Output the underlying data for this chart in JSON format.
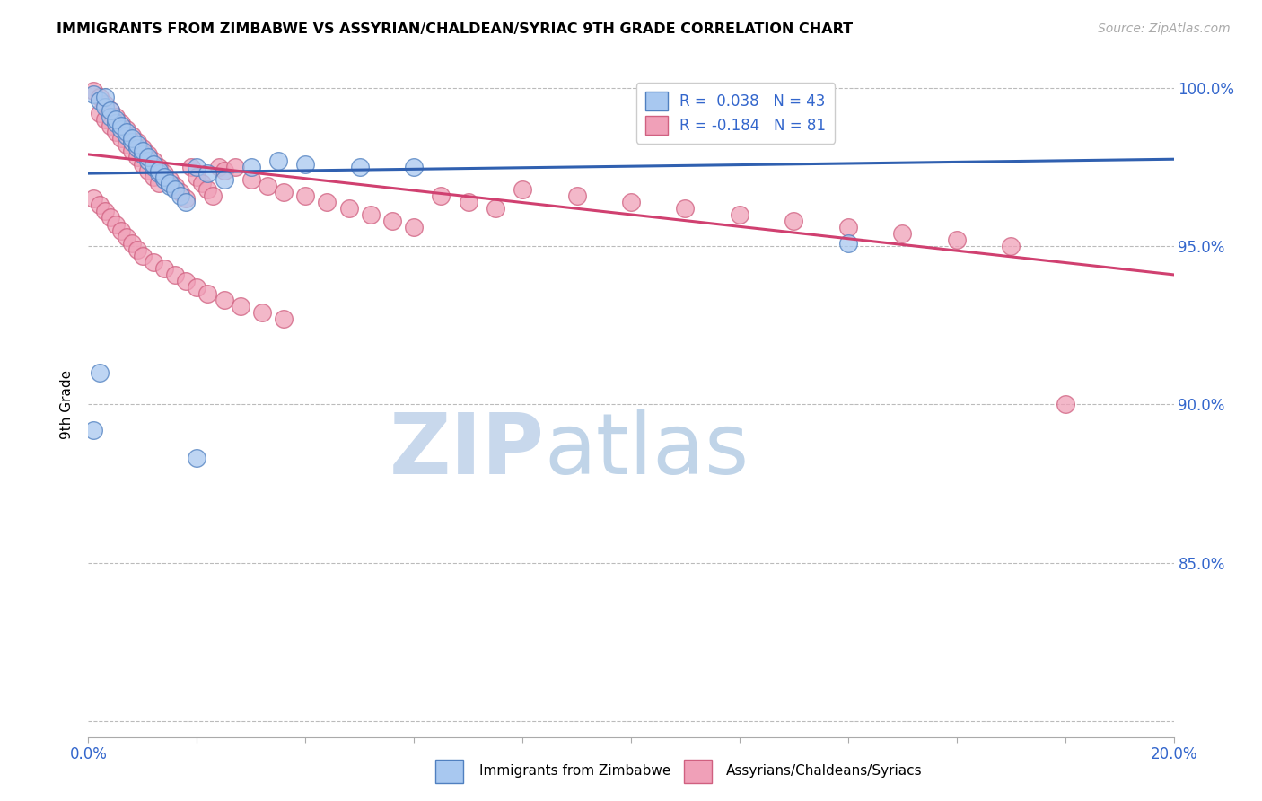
{
  "title": "IMMIGRANTS FROM ZIMBABWE VS ASSYRIAN/CHALDEAN/SYRIAC 9TH GRADE CORRELATION CHART",
  "source": "Source: ZipAtlas.com",
  "ylabel": "9th Grade",
  "xlim": [
    0.0,
    0.2
  ],
  "ylim": [
    0.795,
    1.005
  ],
  "xticks": [
    0.0,
    0.02,
    0.04,
    0.06,
    0.08,
    0.1,
    0.12,
    0.14,
    0.16,
    0.18,
    0.2
  ],
  "yticks": [
    0.8,
    0.85,
    0.9,
    0.95,
    1.0
  ],
  "blue_color": "#A8C8F0",
  "pink_color": "#F0A0B8",
  "blue_edge_color": "#5080C0",
  "pink_edge_color": "#D06080",
  "blue_line_color": "#3060B0",
  "pink_line_color": "#D04070",
  "watermark_zip_color": "#C8D8EC",
  "watermark_atlas_color": "#C0D4E8",
  "blue_scatter_x": [
    0.001,
    0.002,
    0.003,
    0.004,
    0.005,
    0.006,
    0.007,
    0.008,
    0.009,
    0.01,
    0.011,
    0.012,
    0.013,
    0.014,
    0.015,
    0.003,
    0.004,
    0.005,
    0.006,
    0.007,
    0.008,
    0.009,
    0.01,
    0.011,
    0.012,
    0.013,
    0.014,
    0.015,
    0.016,
    0.017,
    0.018,
    0.02,
    0.022,
    0.025,
    0.03,
    0.035,
    0.04,
    0.05,
    0.06,
    0.001,
    0.002,
    0.14,
    0.02
  ],
  "blue_scatter_y": [
    0.998,
    0.996,
    0.994,
    0.991,
    0.989,
    0.987,
    0.985,
    0.983,
    0.981,
    0.979,
    0.977,
    0.975,
    0.973,
    0.971,
    0.969,
    0.997,
    0.993,
    0.99,
    0.988,
    0.986,
    0.984,
    0.982,
    0.98,
    0.978,
    0.976,
    0.974,
    0.972,
    0.97,
    0.968,
    0.966,
    0.964,
    0.975,
    0.973,
    0.971,
    0.975,
    0.977,
    0.976,
    0.975,
    0.975,
    0.892,
    0.91,
    0.951,
    0.883
  ],
  "pink_scatter_x": [
    0.001,
    0.002,
    0.002,
    0.003,
    0.003,
    0.004,
    0.004,
    0.005,
    0.005,
    0.006,
    0.006,
    0.007,
    0.007,
    0.008,
    0.008,
    0.009,
    0.009,
    0.01,
    0.01,
    0.011,
    0.011,
    0.012,
    0.012,
    0.013,
    0.013,
    0.014,
    0.015,
    0.016,
    0.017,
    0.018,
    0.019,
    0.02,
    0.021,
    0.022,
    0.023,
    0.024,
    0.025,
    0.027,
    0.03,
    0.033,
    0.036,
    0.04,
    0.044,
    0.048,
    0.052,
    0.056,
    0.06,
    0.065,
    0.07,
    0.075,
    0.08,
    0.09,
    0.1,
    0.11,
    0.12,
    0.13,
    0.14,
    0.15,
    0.16,
    0.17,
    0.001,
    0.002,
    0.003,
    0.004,
    0.005,
    0.006,
    0.007,
    0.008,
    0.009,
    0.01,
    0.012,
    0.014,
    0.016,
    0.018,
    0.02,
    0.022,
    0.025,
    0.028,
    0.032,
    0.036,
    0.18
  ],
  "pink_scatter_y": [
    0.999,
    0.997,
    0.992,
    0.995,
    0.99,
    0.993,
    0.988,
    0.991,
    0.986,
    0.989,
    0.984,
    0.987,
    0.982,
    0.985,
    0.98,
    0.983,
    0.978,
    0.981,
    0.976,
    0.979,
    0.974,
    0.977,
    0.972,
    0.975,
    0.97,
    0.973,
    0.971,
    0.969,
    0.967,
    0.965,
    0.975,
    0.972,
    0.97,
    0.968,
    0.966,
    0.975,
    0.974,
    0.975,
    0.971,
    0.969,
    0.967,
    0.966,
    0.964,
    0.962,
    0.96,
    0.958,
    0.956,
    0.966,
    0.964,
    0.962,
    0.968,
    0.966,
    0.964,
    0.962,
    0.96,
    0.958,
    0.956,
    0.954,
    0.952,
    0.95,
    0.965,
    0.963,
    0.961,
    0.959,
    0.957,
    0.955,
    0.953,
    0.951,
    0.949,
    0.947,
    0.945,
    0.943,
    0.941,
    0.939,
    0.937,
    0.935,
    0.933,
    0.931,
    0.929,
    0.927,
    0.9
  ],
  "blue_trend_x": [
    0.0,
    0.2
  ],
  "blue_trend_y": [
    0.973,
    0.9775
  ],
  "pink_trend_x": [
    0.0,
    0.2
  ],
  "pink_trend_y": [
    0.979,
    0.941
  ]
}
